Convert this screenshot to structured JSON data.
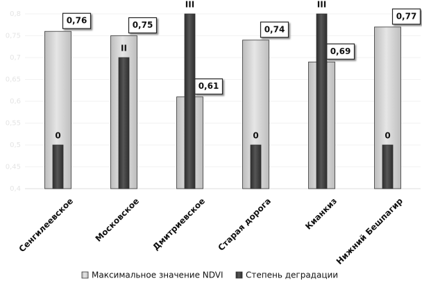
{
  "chart_data": {
    "type": "bar",
    "categories": [
      "Сенгилеевское",
      "Московское",
      "Дмитриевское",
      "Старая дорога",
      "Кианкиз",
      "Нижний Бешпагир"
    ],
    "series": [
      {
        "name": "Максимальное значение NDVI",
        "color": "#bdbdbd",
        "values": [
          0.76,
          0.75,
          0.61,
          0.74,
          0.69,
          0.77
        ],
        "value_labels": [
          "0,76",
          "0,75",
          "0,61",
          "0,74",
          "0,69",
          "0,77"
        ]
      },
      {
        "name": "Степень деградации",
        "color": "#2e2e2e",
        "axis": "y2",
        "values": [
          0,
          2,
          3,
          0,
          3,
          0
        ],
        "value_labels": [
          "0",
          "II",
          "III",
          "0",
          "III",
          "0"
        ]
      }
    ],
    "ylim": [
      0.4,
      0.8
    ],
    "yticks": [
      {
        "value": 0.4,
        "label": "0,4"
      },
      {
        "value": 0.45,
        "label": "0,45"
      },
      {
        "value": 0.5,
        "label": "0,5"
      },
      {
        "value": 0.55,
        "label": "0,55"
      },
      {
        "value": 0.6,
        "label": "0,6"
      },
      {
        "value": 0.65,
        "label": "0,65"
      },
      {
        "value": 0.7,
        "label": "0,7"
      },
      {
        "value": 0.75,
        "label": "0,75"
      },
      {
        "value": 0.8,
        "label": "0,8"
      }
    ],
    "y2lim": [
      -1,
      3
    ],
    "grid": true,
    "legend": "bottom"
  }
}
